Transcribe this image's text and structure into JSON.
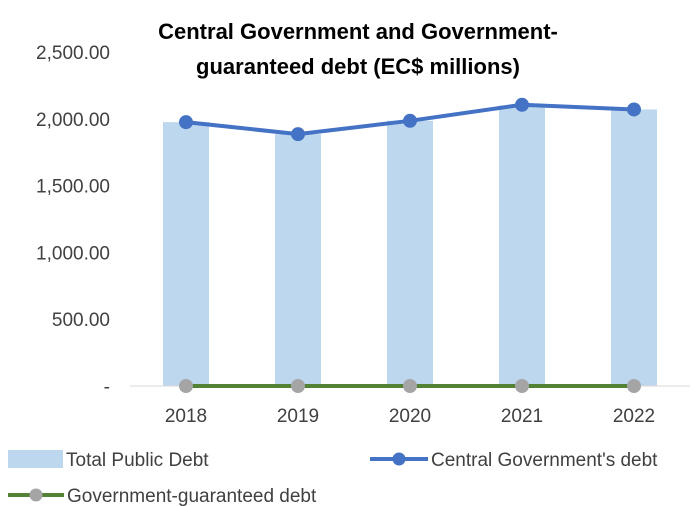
{
  "chart_data": {
    "type": "bar",
    "title_lines": [
      "Central Government and Government-",
      "guaranteed debt (EC$ millions)"
    ],
    "categories": [
      "2018",
      "2019",
      "2020",
      "2021",
      "2022"
    ],
    "ylim": [
      0,
      2500
    ],
    "y_ticks": [
      {
        "value": 0,
        "label": "-"
      },
      {
        "value": 500,
        "label": "500.00"
      },
      {
        "value": 1000,
        "label": "1,000.00"
      },
      {
        "value": 1500,
        "label": "1,500.00"
      },
      {
        "value": 2000,
        "label": "2,000.00"
      },
      {
        "value": 2500,
        "label": "2,500.00"
      }
    ],
    "grid": false,
    "legend_position": "bottom",
    "series": [
      {
        "name": "Total Public Debt",
        "type": "bar",
        "color": "#bdd7ee",
        "values": [
          1975,
          1885,
          1985,
          2100,
          2070
        ]
      },
      {
        "name": "Central Government's debt",
        "type": "line",
        "color": "#4472c4",
        "values": [
          1975,
          1885,
          1985,
          2105,
          2070
        ]
      },
      {
        "name": "Government-guaranteed debt",
        "type": "line",
        "color": "#548235",
        "marker_color": "#a5a5a5",
        "values": [
          0,
          0,
          0,
          0,
          0
        ]
      }
    ]
  }
}
